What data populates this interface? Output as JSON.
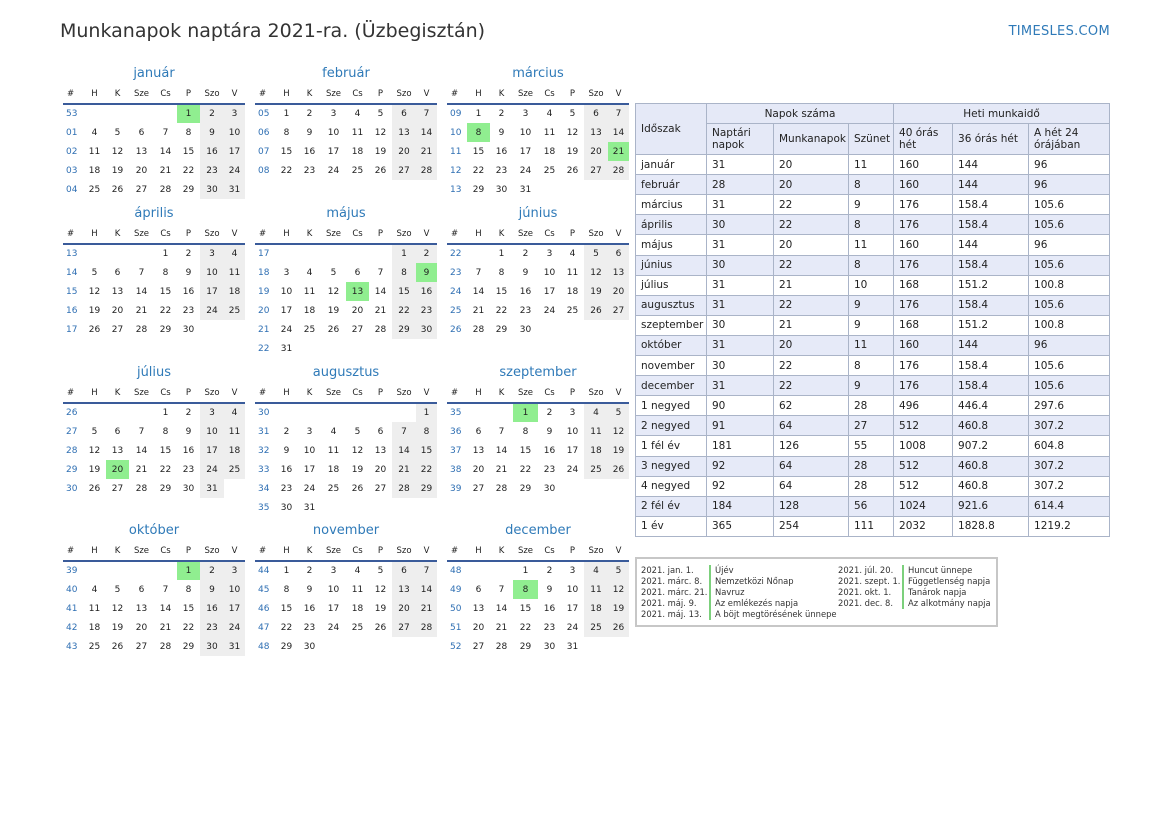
{
  "header": {
    "title": "Munkanapok naptára 2021-ra. (Üzbegisztán)",
    "brand": "TIMESLES.COM"
  },
  "calendar": {
    "weekday_headers": [
      "#",
      "H",
      "K",
      "Sze",
      "Cs",
      "P",
      "Szo",
      "V"
    ],
    "holiday_color": "#90ee90",
    "weekend_color": "#eeeeee",
    "months": [
      {
        "name": "január",
        "weeks": [
          [
            "53",
            "",
            "",
            "",
            "",
            "1",
            "2",
            "3"
          ],
          [
            "01",
            "4",
            "5",
            "6",
            "7",
            "8",
            "9",
            "10"
          ],
          [
            "02",
            "11",
            "12",
            "13",
            "14",
            "15",
            "16",
            "17"
          ],
          [
            "03",
            "18",
            "19",
            "20",
            "21",
            "22",
            "23",
            "24"
          ],
          [
            "04",
            "25",
            "26",
            "27",
            "28",
            "29",
            "30",
            "31"
          ]
        ],
        "holidays": [
          "1"
        ]
      },
      {
        "name": "február",
        "weeks": [
          [
            "05",
            "1",
            "2",
            "3",
            "4",
            "5",
            "6",
            "7"
          ],
          [
            "06",
            "8",
            "9",
            "10",
            "11",
            "12",
            "13",
            "14"
          ],
          [
            "07",
            "15",
            "16",
            "17",
            "18",
            "19",
            "20",
            "21"
          ],
          [
            "08",
            "22",
            "23",
            "24",
            "25",
            "26",
            "27",
            "28"
          ]
        ],
        "holidays": []
      },
      {
        "name": "március",
        "weeks": [
          [
            "09",
            "1",
            "2",
            "3",
            "4",
            "5",
            "6",
            "7"
          ],
          [
            "10",
            "8",
            "9",
            "10",
            "11",
            "12",
            "13",
            "14"
          ],
          [
            "11",
            "15",
            "16",
            "17",
            "18",
            "19",
            "20",
            "21"
          ],
          [
            "12",
            "22",
            "23",
            "24",
            "25",
            "26",
            "27",
            "28"
          ],
          [
            "13",
            "29",
            "30",
            "31",
            "",
            "",
            "",
            ""
          ]
        ],
        "holidays": [
          "8",
          "21"
        ]
      },
      {
        "name": "április",
        "weeks": [
          [
            "13",
            "",
            "",
            "",
            "1",
            "2",
            "3",
            "4"
          ],
          [
            "14",
            "5",
            "6",
            "7",
            "8",
            "9",
            "10",
            "11"
          ],
          [
            "15",
            "12",
            "13",
            "14",
            "15",
            "16",
            "17",
            "18"
          ],
          [
            "16",
            "19",
            "20",
            "21",
            "22",
            "23",
            "24",
            "25"
          ],
          [
            "17",
            "26",
            "27",
            "28",
            "29",
            "30",
            "",
            ""
          ]
        ],
        "holidays": []
      },
      {
        "name": "május",
        "weeks": [
          [
            "17",
            "",
            "",
            "",
            "",
            "",
            "1",
            "2"
          ],
          [
            "18",
            "3",
            "4",
            "5",
            "6",
            "7",
            "8",
            "9"
          ],
          [
            "19",
            "10",
            "11",
            "12",
            "13",
            "14",
            "15",
            "16"
          ],
          [
            "20",
            "17",
            "18",
            "19",
            "20",
            "21",
            "22",
            "23"
          ],
          [
            "21",
            "24",
            "25",
            "26",
            "27",
            "28",
            "29",
            "30"
          ],
          [
            "22",
            "31",
            "",
            "",
            "",
            "",
            "",
            ""
          ]
        ],
        "holidays": [
          "9",
          "13"
        ]
      },
      {
        "name": "június",
        "weeks": [
          [
            "22",
            "",
            "1",
            "2",
            "3",
            "4",
            "5",
            "6"
          ],
          [
            "23",
            "7",
            "8",
            "9",
            "10",
            "11",
            "12",
            "13"
          ],
          [
            "24",
            "14",
            "15",
            "16",
            "17",
            "18",
            "19",
            "20"
          ],
          [
            "25",
            "21",
            "22",
            "23",
            "24",
            "25",
            "26",
            "27"
          ],
          [
            "26",
            "28",
            "29",
            "30",
            "",
            "",
            "",
            ""
          ]
        ],
        "holidays": []
      },
      {
        "name": "július",
        "weeks": [
          [
            "26",
            "",
            "",
            "",
            "1",
            "2",
            "3",
            "4"
          ],
          [
            "27",
            "5",
            "6",
            "7",
            "8",
            "9",
            "10",
            "11"
          ],
          [
            "28",
            "12",
            "13",
            "14",
            "15",
            "16",
            "17",
            "18"
          ],
          [
            "29",
            "19",
            "20",
            "21",
            "22",
            "23",
            "24",
            "25"
          ],
          [
            "30",
            "26",
            "27",
            "28",
            "29",
            "30",
            "31",
            ""
          ]
        ],
        "holidays": [
          "20"
        ]
      },
      {
        "name": "augusztus",
        "weeks": [
          [
            "30",
            "",
            "",
            "",
            "",
            "",
            "",
            "1"
          ],
          [
            "31",
            "2",
            "3",
            "4",
            "5",
            "6",
            "7",
            "8"
          ],
          [
            "32",
            "9",
            "10",
            "11",
            "12",
            "13",
            "14",
            "15"
          ],
          [
            "33",
            "16",
            "17",
            "18",
            "19",
            "20",
            "21",
            "22"
          ],
          [
            "34",
            "23",
            "24",
            "25",
            "26",
            "27",
            "28",
            "29"
          ],
          [
            "35",
            "30",
            "31",
            "",
            "",
            "",
            "",
            ""
          ]
        ],
        "holidays": []
      },
      {
        "name": "szeptember",
        "weeks": [
          [
            "35",
            "",
            "",
            "1",
            "2",
            "3",
            "4",
            "5"
          ],
          [
            "36",
            "6",
            "7",
            "8",
            "9",
            "10",
            "11",
            "12"
          ],
          [
            "37",
            "13",
            "14",
            "15",
            "16",
            "17",
            "18",
            "19"
          ],
          [
            "38",
            "20",
            "21",
            "22",
            "23",
            "24",
            "25",
            "26"
          ],
          [
            "39",
            "27",
            "28",
            "29",
            "30",
            "",
            "",
            ""
          ]
        ],
        "holidays": [
          "1"
        ]
      },
      {
        "name": "október",
        "weeks": [
          [
            "39",
            "",
            "",
            "",
            "",
            "1",
            "2",
            "3"
          ],
          [
            "40",
            "4",
            "5",
            "6",
            "7",
            "8",
            "9",
            "10"
          ],
          [
            "41",
            "11",
            "12",
            "13",
            "14",
            "15",
            "16",
            "17"
          ],
          [
            "42",
            "18",
            "19",
            "20",
            "21",
            "22",
            "23",
            "24"
          ],
          [
            "43",
            "25",
            "26",
            "27",
            "28",
            "29",
            "30",
            "31"
          ]
        ],
        "holidays": [
          "1"
        ]
      },
      {
        "name": "november",
        "weeks": [
          [
            "44",
            "1",
            "2",
            "3",
            "4",
            "5",
            "6",
            "7"
          ],
          [
            "45",
            "8",
            "9",
            "10",
            "11",
            "12",
            "13",
            "14"
          ],
          [
            "46",
            "15",
            "16",
            "17",
            "18",
            "19",
            "20",
            "21"
          ],
          [
            "47",
            "22",
            "23",
            "24",
            "25",
            "26",
            "27",
            "28"
          ],
          [
            "48",
            "29",
            "30",
            "",
            "",
            "",
            "",
            ""
          ]
        ],
        "holidays": []
      },
      {
        "name": "december",
        "weeks": [
          [
            "48",
            "",
            "",
            "1",
            "2",
            "3",
            "4",
            "5"
          ],
          [
            "49",
            "6",
            "7",
            "8",
            "9",
            "10",
            "11",
            "12"
          ],
          [
            "50",
            "13",
            "14",
            "15",
            "16",
            "17",
            "18",
            "19"
          ],
          [
            "51",
            "20",
            "21",
            "22",
            "23",
            "24",
            "25",
            "26"
          ],
          [
            "52",
            "27",
            "28",
            "29",
            "30",
            "31",
            "",
            ""
          ]
        ],
        "holidays": [
          "8"
        ]
      }
    ]
  },
  "stats": {
    "period_header": "Időszak",
    "days_group": "Napok száma",
    "hours_group": "Heti munkaidő",
    "col_calendar_days": "Naptári napok",
    "col_workdays": "Munkanapok",
    "col_holidays": "Szünet",
    "col_40h": "40 órás hét",
    "col_36h": "36 órás hét",
    "col_24h": "A hét 24 órájában",
    "rows": [
      [
        "január",
        "31",
        "20",
        "11",
        "160",
        "144",
        "96"
      ],
      [
        "február",
        "28",
        "20",
        "8",
        "160",
        "144",
        "96"
      ],
      [
        "március",
        "31",
        "22",
        "9",
        "176",
        "158.4",
        "105.6"
      ],
      [
        "április",
        "30",
        "22",
        "8",
        "176",
        "158.4",
        "105.6"
      ],
      [
        "május",
        "31",
        "20",
        "11",
        "160",
        "144",
        "96"
      ],
      [
        "június",
        "30",
        "22",
        "8",
        "176",
        "158.4",
        "105.6"
      ],
      [
        "július",
        "31",
        "21",
        "10",
        "168",
        "151.2",
        "100.8"
      ],
      [
        "augusztus",
        "31",
        "22",
        "9",
        "176",
        "158.4",
        "105.6"
      ],
      [
        "szeptember",
        "30",
        "21",
        "9",
        "168",
        "151.2",
        "100.8"
      ],
      [
        "október",
        "31",
        "20",
        "11",
        "160",
        "144",
        "96"
      ],
      [
        "november",
        "30",
        "22",
        "8",
        "176",
        "158.4",
        "105.6"
      ],
      [
        "december",
        "31",
        "22",
        "9",
        "176",
        "158.4",
        "105.6"
      ],
      [
        "1 negyed",
        "90",
        "62",
        "28",
        "496",
        "446.4",
        "297.6"
      ],
      [
        "2 negyed",
        "91",
        "64",
        "27",
        "512",
        "460.8",
        "307.2"
      ],
      [
        "1 fél év",
        "181",
        "126",
        "55",
        "1008",
        "907.2",
        "604.8"
      ],
      [
        "3 negyed",
        "92",
        "64",
        "28",
        "512",
        "460.8",
        "307.2"
      ],
      [
        "4 negyed",
        "92",
        "64",
        "28",
        "512",
        "460.8",
        "307.2"
      ],
      [
        "2 fél év",
        "184",
        "128",
        "56",
        "1024",
        "921.6",
        "614.4"
      ],
      [
        "1 év",
        "365",
        "254",
        "111",
        "2032",
        "1828.8",
        "1219.2"
      ]
    ]
  },
  "holidays_list": [
    {
      "date": "2021. jan. 1.",
      "name": "Újév"
    },
    {
      "date": "2021. márc. 8.",
      "name": "Nemzetközi Nőnap"
    },
    {
      "date": "2021. márc. 21.",
      "name": "Navruz"
    },
    {
      "date": "2021. máj. 9.",
      "name": "Az emlékezés napja"
    },
    {
      "date": "2021. máj. 13.",
      "name": "A böjt megtörésének ünnepe"
    },
    {
      "date": "2021. júl. 20.",
      "name": "Huncut ünnepe"
    },
    {
      "date": "2021. szept. 1.",
      "name": "Függetlenség napja"
    },
    {
      "date": "2021. okt. 1.",
      "name": "Tanárok napja"
    },
    {
      "date": "2021. dec. 8.",
      "name": "Az alkotmány napja"
    }
  ]
}
